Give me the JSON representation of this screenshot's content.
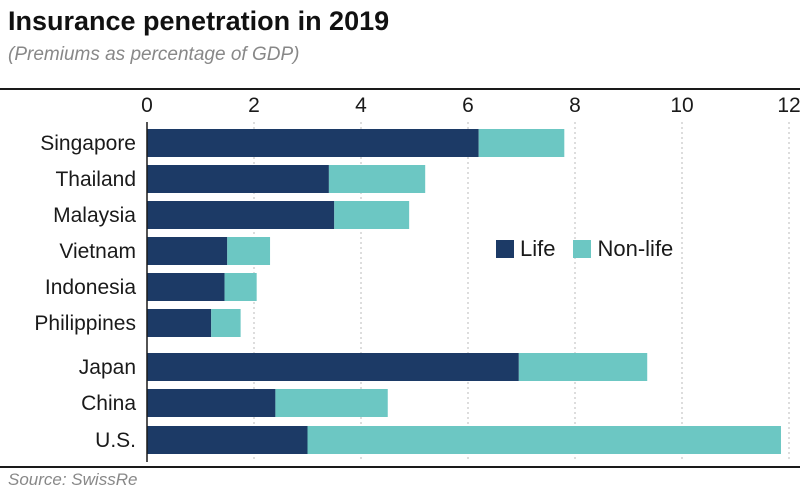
{
  "header": {
    "title": "Insurance penetration in 2019",
    "subtitle": "(Premiums as percentage of GDP)"
  },
  "footer": {
    "source": "Source: SwissRe"
  },
  "colors": {
    "life": "#1c3a66",
    "non_life": "#6cc7c3",
    "grid": "#bbbbbb"
  },
  "chart_data": {
    "type": "bar",
    "orientation": "horizontal",
    "stacked": true,
    "title": "Insurance penetration in 2019",
    "subtitle": "(Premiums as percentage of GDP)",
    "categories": [
      "Singapore",
      "Thailand",
      "Malaysia",
      "Vietnam",
      "Indonesia",
      "Philippines",
      "Japan",
      "China",
      "U.S."
    ],
    "series": [
      {
        "name": "Life",
        "values": [
          6.2,
          3.4,
          3.5,
          1.5,
          1.45,
          1.2,
          6.95,
          2.4,
          3.0
        ]
      },
      {
        "name": "Non-life",
        "values": [
          1.6,
          1.8,
          1.4,
          0.8,
          0.6,
          0.55,
          2.4,
          2.1,
          8.85
        ]
      }
    ],
    "x_ticks": [
      0,
      2,
      4,
      6,
      8,
      10,
      12
    ],
    "xlim": [
      0,
      12
    ],
    "xlabel": "",
    "ylabel": "",
    "grid": "vertical dotted",
    "legend": "right-center"
  }
}
